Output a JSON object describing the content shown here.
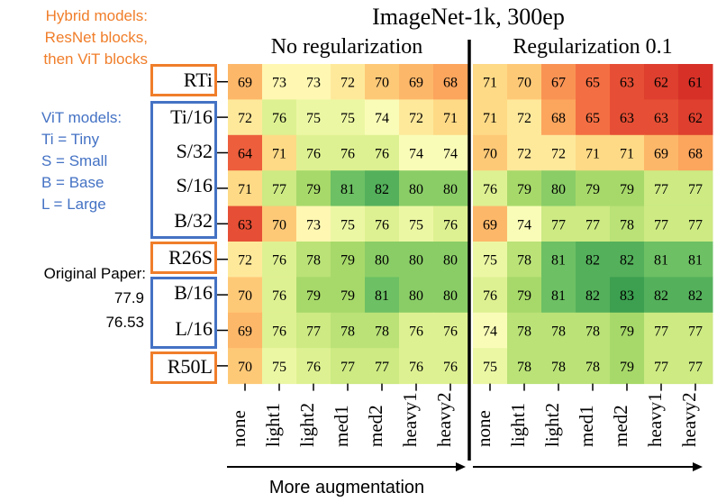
{
  "chart_data": {
    "type": "heatmap",
    "title": "ImageNet-1k, 300ep",
    "groups": [
      "No regularization",
      "Regularization 0.1"
    ],
    "columns": [
      "none",
      "light1",
      "light2",
      "med1",
      "med2",
      "heavy1",
      "heavy2",
      "none",
      "light1",
      "light2",
      "med1",
      "med2",
      "heavy1",
      "heavy2"
    ],
    "rows": [
      "RTi",
      "Ti/16",
      "S/32",
      "S/16",
      "B/32",
      "R26S",
      "B/16",
      "L/16",
      "R50L"
    ],
    "values": [
      [
        69,
        73,
        73,
        72,
        70,
        69,
        68,
        71,
        70,
        67,
        65,
        63,
        62,
        61
      ],
      [
        72,
        76,
        75,
        75,
        74,
        72,
        71,
        71,
        72,
        68,
        65,
        63,
        63,
        62
      ],
      [
        64,
        71,
        76,
        76,
        76,
        74,
        74,
        70,
        72,
        72,
        71,
        71,
        69,
        68
      ],
      [
        71,
        77,
        79,
        81,
        82,
        80,
        80,
        76,
        79,
        80,
        79,
        79,
        77,
        77
      ],
      [
        63,
        70,
        73,
        75,
        76,
        75,
        76,
        69,
        74,
        77,
        77,
        78,
        77,
        77
      ],
      [
        72,
        76,
        78,
        79,
        80,
        80,
        80,
        75,
        78,
        81,
        82,
        82,
        81,
        81
      ],
      [
        70,
        76,
        79,
        79,
        81,
        80,
        80,
        76,
        79,
        81,
        82,
        83,
        82,
        82
      ],
      [
        69,
        76,
        77,
        78,
        78,
        76,
        76,
        74,
        78,
        78,
        78,
        79,
        77,
        77
      ],
      [
        70,
        75,
        76,
        77,
        77,
        76,
        76,
        75,
        78,
        78,
        78,
        79,
        77,
        77
      ]
    ],
    "xlabel": "More augmentation",
    "colormap": "red-yellow-green",
    "separator_color": "#000000"
  },
  "notes": {
    "hybrid": "Hybrid models:\nResNet blocks,\nthen ViT blocks",
    "vit": "ViT models:\nTi = Tiny\nS = Small\nB = Base\nL = Large",
    "paper_label": "Original Paper:",
    "paper_values": [
      "77.9",
      "76.53"
    ]
  },
  "colors": {
    "hybrid_accent": "#f07e2a",
    "vit_accent": "#4472c4"
  }
}
